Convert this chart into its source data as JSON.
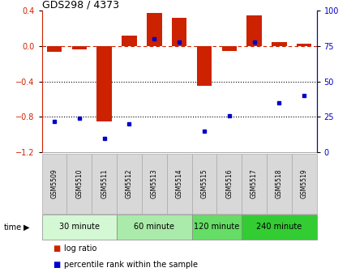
{
  "title": "GDS298 / 4373",
  "samples": [
    "GSM5509",
    "GSM5510",
    "GSM5511",
    "GSM5512",
    "GSM5513",
    "GSM5514",
    "GSM5515",
    "GSM5516",
    "GSM5517",
    "GSM5518",
    "GSM5519"
  ],
  "log_ratio": [
    -0.06,
    -0.04,
    -0.85,
    0.12,
    0.38,
    0.32,
    -0.45,
    -0.05,
    0.35,
    0.05,
    0.03
  ],
  "percentile": [
    22,
    24,
    10,
    20,
    80,
    78,
    15,
    26,
    78,
    35,
    40
  ],
  "bar_color": "#cc2200",
  "dot_color": "#0000cc",
  "dashed_color": "#cc2200",
  "dotted_color": "#000000",
  "bg_color": "#ffffff",
  "ylim_left": [
    -1.2,
    0.4
  ],
  "ylim_right": [
    0,
    100
  ],
  "groups": [
    {
      "label": "30 minute",
      "start": 0,
      "end": 2,
      "color": "#d4f7d4"
    },
    {
      "label": "60 minute",
      "start": 3,
      "end": 5,
      "color": "#aaeaaa"
    },
    {
      "label": "120 minute",
      "start": 6,
      "end": 7,
      "color": "#66dd66"
    },
    {
      "label": "240 minute",
      "start": 8,
      "end": 10,
      "color": "#33cc33"
    }
  ],
  "time_label": "time",
  "legend_bar_label": "log ratio",
  "legend_dot_label": "percentile rank within the sample",
  "yticks_left": [
    0.4,
    0.0,
    -0.4,
    -0.8,
    -1.2
  ],
  "yticks_right": [
    100,
    75,
    50,
    25,
    0
  ],
  "hlines": [
    -0.4,
    -0.8
  ],
  "sample_box_color": "#d8d8d8",
  "sample_box_edge": "#aaaaaa"
}
